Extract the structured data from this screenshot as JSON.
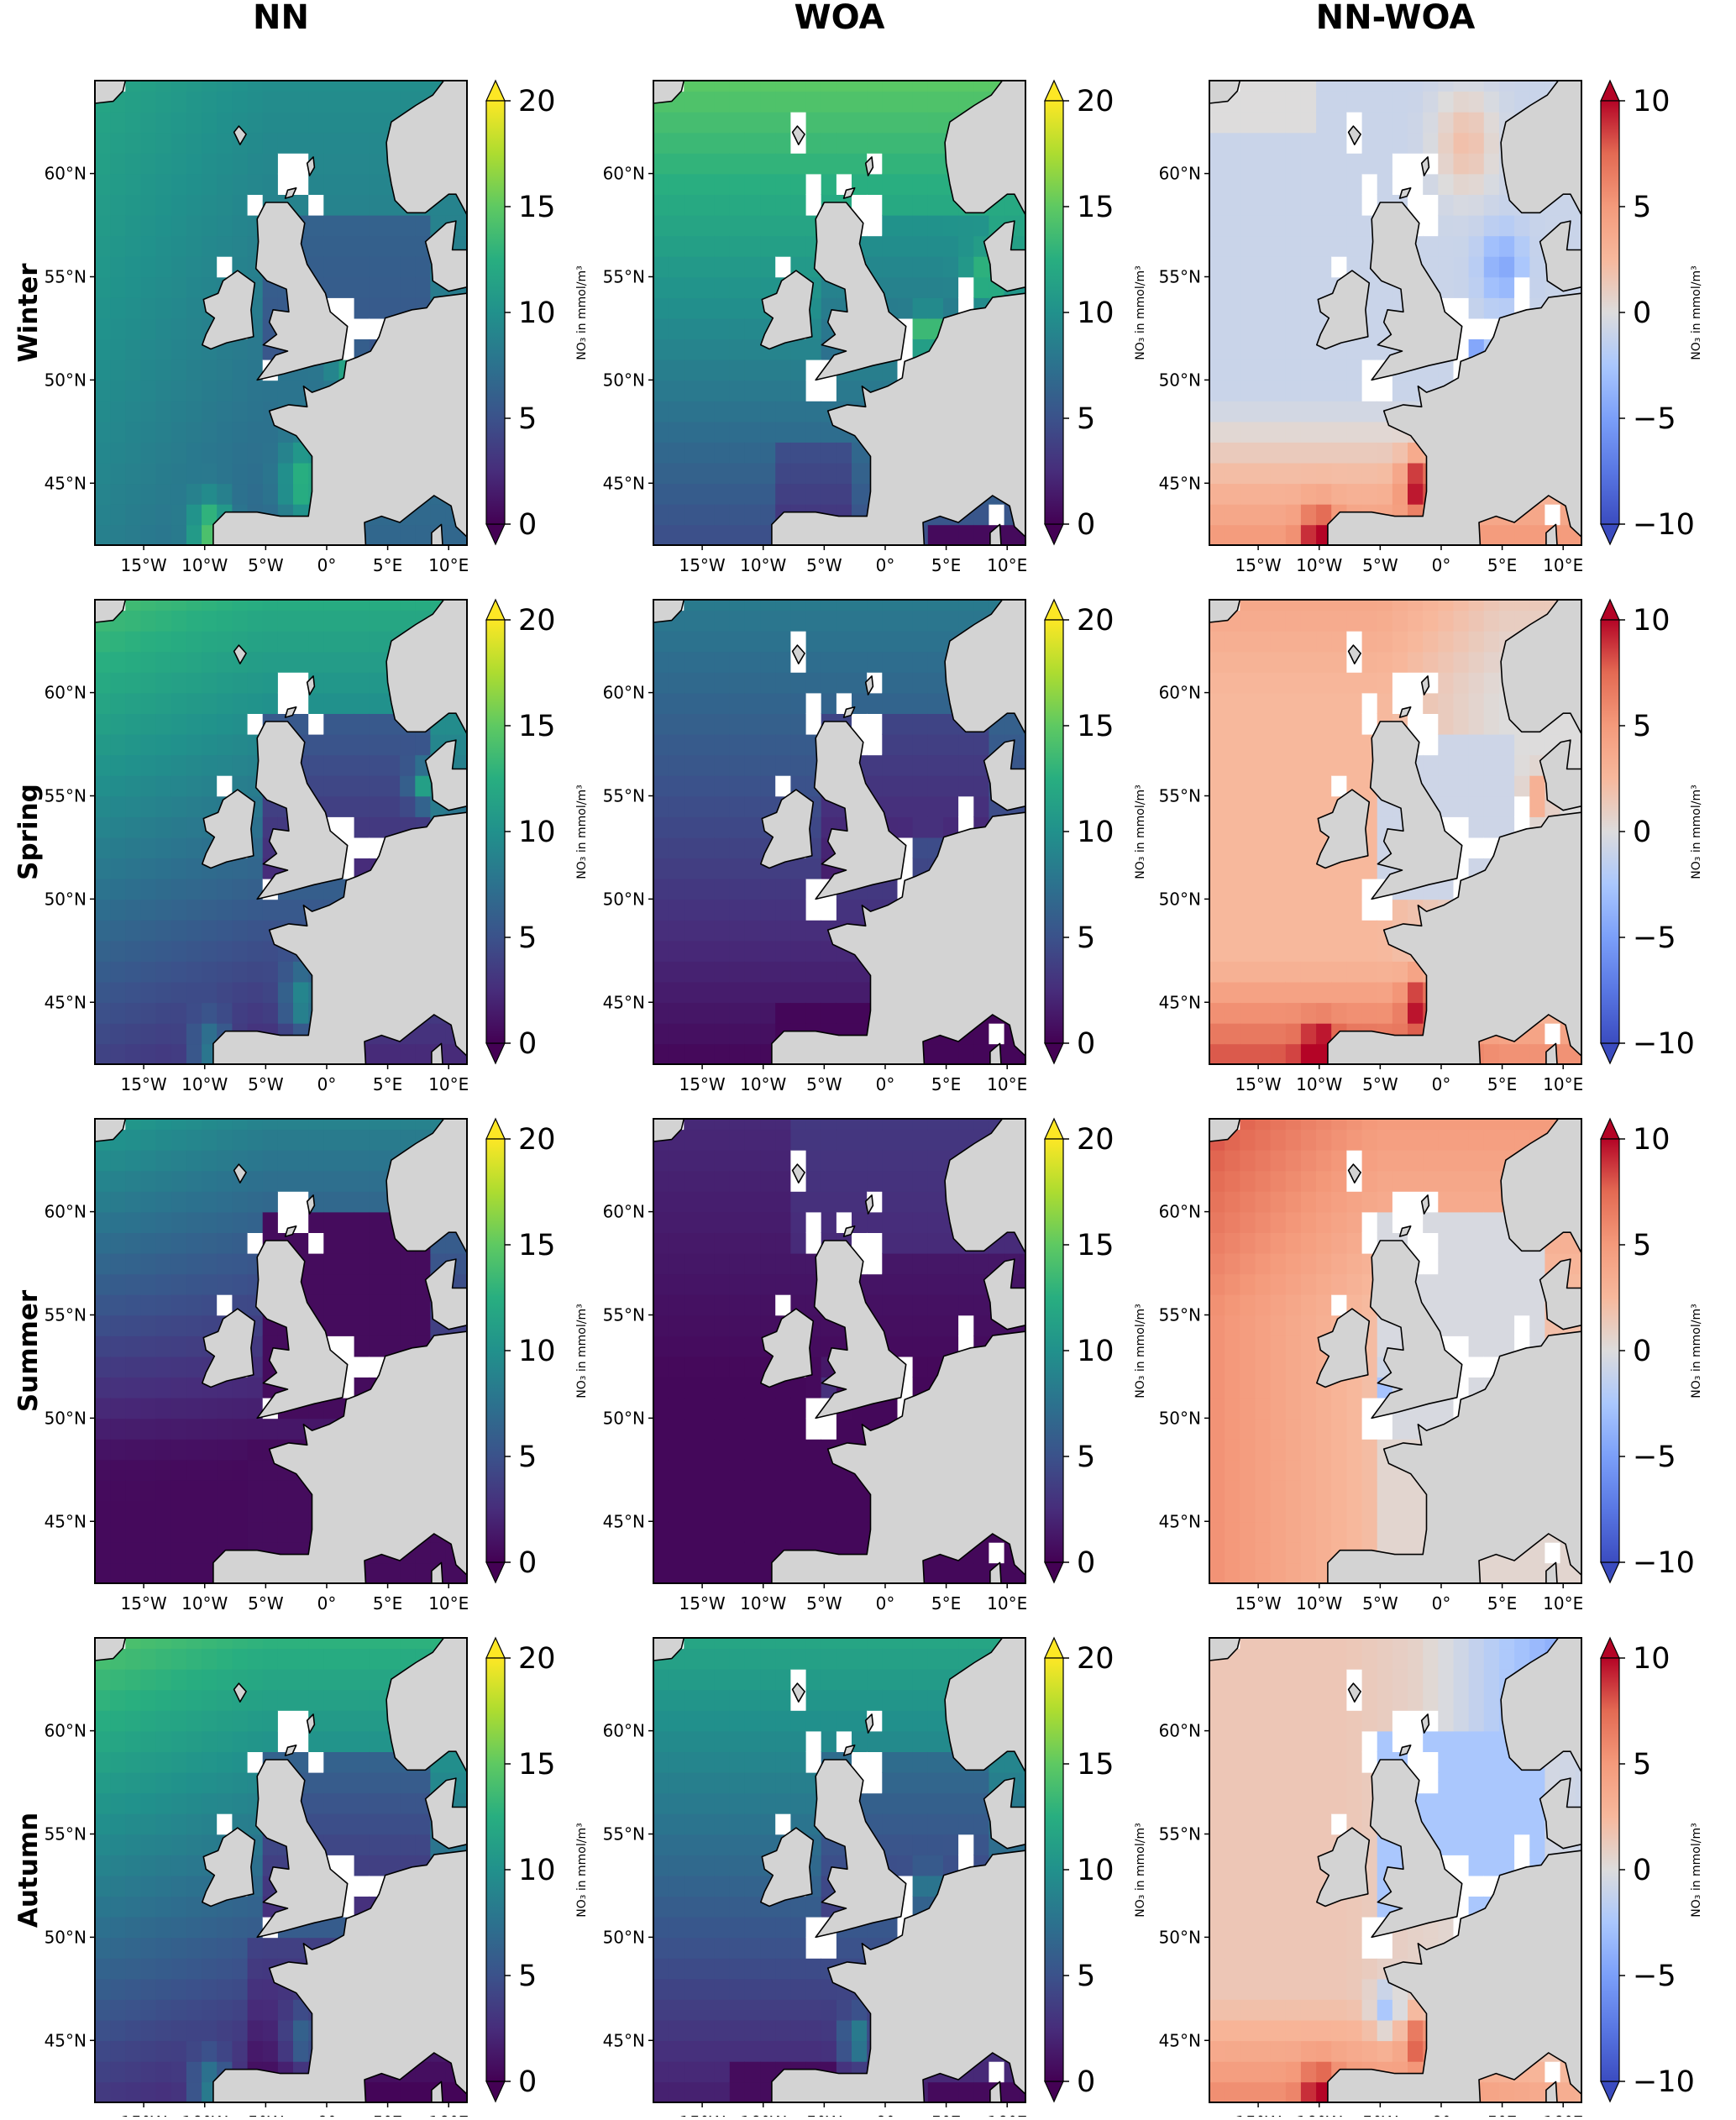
{
  "columns": [
    {
      "title": "NN",
      "kind": "seq"
    },
    {
      "title": "WOA",
      "kind": "seq"
    },
    {
      "title": "NN-WOA",
      "kind": "div"
    }
  ],
  "rows": [
    "Winter",
    "Spring",
    "Summer",
    "Autumn"
  ],
  "axes": {
    "lon_ticks": [
      "15°W",
      "10°W",
      "5°W",
      "0°",
      "5°E",
      "10°E"
    ],
    "lon_values": [
      -15,
      -10,
      -5,
      0,
      5,
      10
    ],
    "lat_ticks": [
      "60°N",
      "55°N",
      "50°N",
      "45°N"
    ],
    "lat_values": [
      60,
      55,
      50,
      45
    ],
    "lon_range": [
      -19,
      11.5
    ],
    "lat_range": [
      42,
      64.5
    ]
  },
  "colorbars": {
    "seq": {
      "ticks": [
        "0",
        "5",
        "10",
        "15",
        "20"
      ],
      "values": [
        0,
        5,
        10,
        15,
        20
      ],
      "range": [
        0,
        20
      ],
      "cmap": "viridis",
      "extend": "both"
    },
    "div": {
      "ticks": [
        "−10",
        "−5",
        "0",
        "5",
        "10"
      ],
      "values": [
        -10,
        -5,
        0,
        5,
        10
      ],
      "range": [
        -10,
        10
      ],
      "cmap": "coolwarm",
      "extend": "both"
    },
    "label": "NO₃ in mmol/m³"
  },
  "colors": {
    "land": "#d3d3d3",
    "coast": "#000000",
    "missing": "#ffffff"
  }
}
